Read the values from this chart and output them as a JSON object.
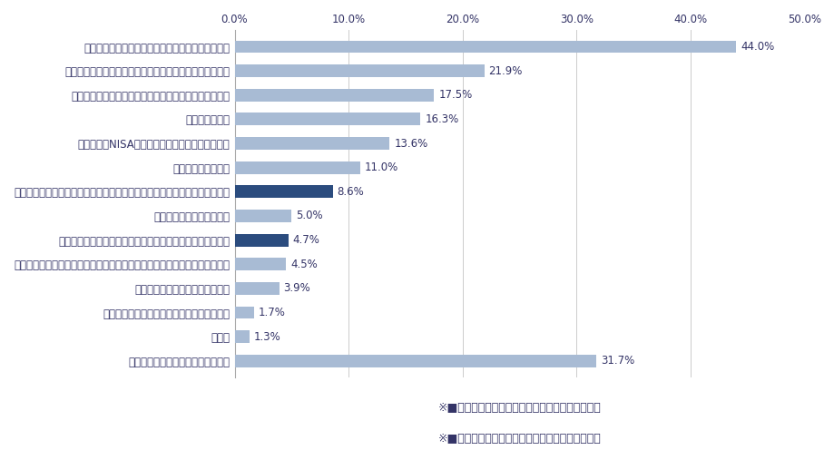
{
  "categories": [
    "銀行が提供する新しいサービスや機能に関する情報",
    "銀行が発行するクレジットカード・デビットカードの案内",
    "詐欺や不正利用などセキュリティに対する対策・予防策",
    "定期預金の案内",
    "投資信託・NISAなどの資産運用全般に関する案内",
    "カードローンの案内",
    "自身の入出金状況や預金残高に応じた無駄な出費や貯金に関する助言・提案",
    "住宅・その他ローンの案内",
    "自身の入出金状況や預金残高に応じた資産運用の案内・提案",
    "自身のお金に対する理解度を高めるための、金融全般に関するコラムや記事",
    "上記以外の資産運用に関する案内",
    "学資保険・個人年金などの貯蓄型保険の案内",
    "その他",
    "案内やお知らせを受けたことがない"
  ],
  "values": [
    44.0,
    21.9,
    17.5,
    16.3,
    13.6,
    11.0,
    8.6,
    5.0,
    4.7,
    4.5,
    3.9,
    1.7,
    1.3,
    31.7
  ],
  "dark_blue_indices": [
    6,
    8
  ],
  "light_blue_color": "#a8bbd4",
  "dark_blue_color": "#2b4c7e",
  "bar_height": 0.52,
  "xlim": [
    0,
    50
  ],
  "xticks": [
    0,
    10,
    20,
    30,
    40,
    50
  ],
  "xtick_labels": [
    "0.0%",
    "10.0%",
    "20.0%",
    "30.0%",
    "40.0%",
    "50.0%"
  ],
  "footnote_prefix": "※",
  "footnote_square": "■",
  "footnote_suffix": "の項目がパーソナル化された情報・案内の対象",
  "footnote_prefix_color": "#333366",
  "footnote_square_color": "#2b4c7e",
  "footnote_suffix_color": "#333366",
  "label_fontsize": 8.5,
  "value_fontsize": 8.5,
  "tick_fontsize": 8.5,
  "background_color": "#ffffff",
  "axes_background": "#ffffff",
  "grid_color": "#cccccc",
  "text_color": "#333366"
}
